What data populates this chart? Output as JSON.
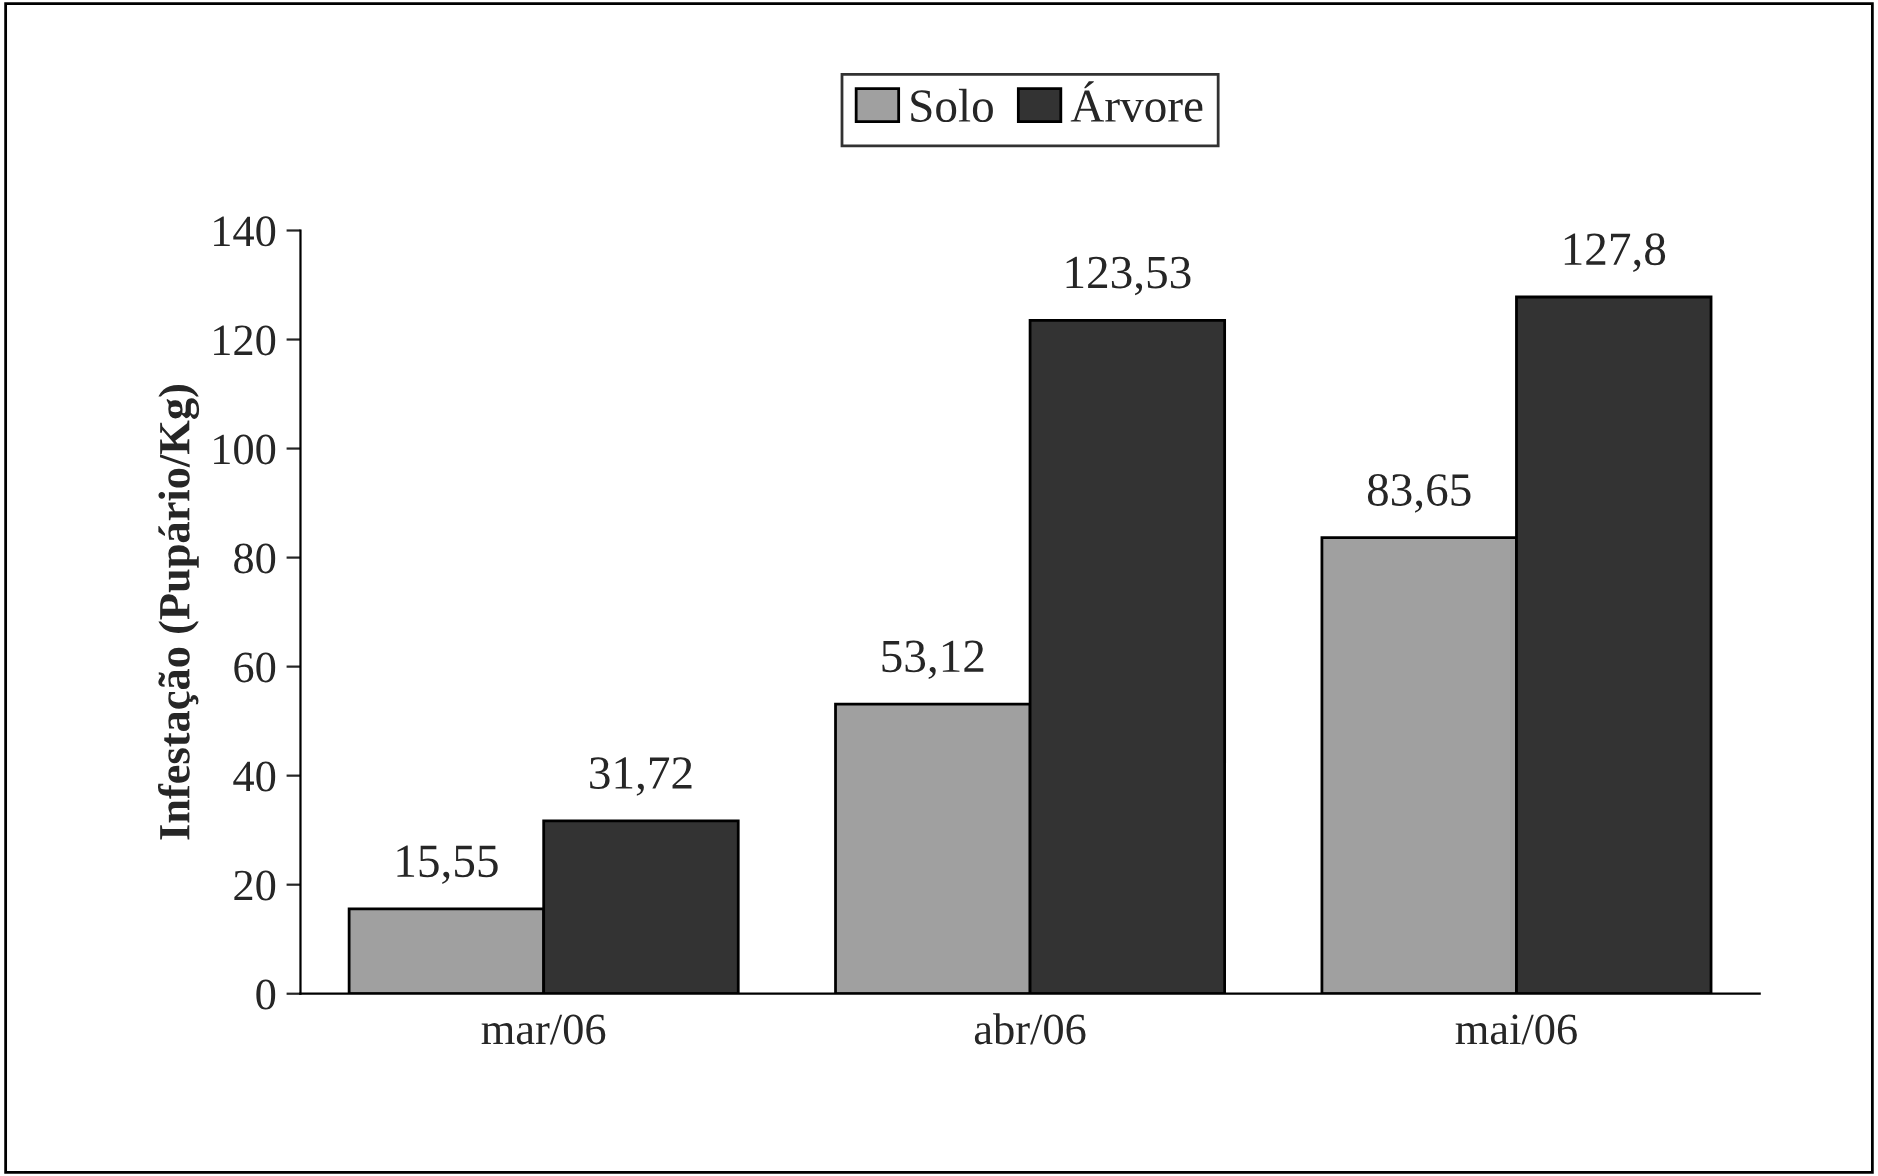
{
  "chart_data": {
    "type": "bar",
    "ylabel": "Infestação (Pupário/Kg)",
    "categories": [
      "mar/06",
      "abr/06",
      "mai/06"
    ],
    "series": [
      {
        "name": "Solo",
        "color": "#a0a0a0",
        "values": [
          15.55,
          53.12,
          83.65
        ],
        "value_labels": [
          "15,55",
          "53,12",
          "83,65"
        ]
      },
      {
        "name": "Árvore",
        "color": "#333333",
        "values": [
          31.72,
          123.53,
          127.8
        ],
        "value_labels": [
          "31,72",
          "123,53",
          "127,8"
        ]
      }
    ],
    "ylim": [
      0,
      140
    ],
    "yticks": [
      0,
      20,
      40,
      60,
      80,
      100,
      120,
      140
    ],
    "legend": "top",
    "grid": false
  }
}
